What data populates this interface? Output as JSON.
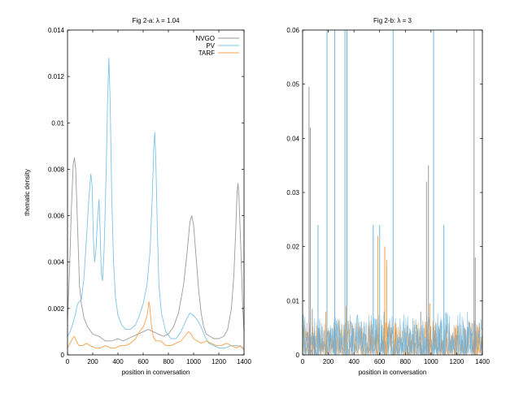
{
  "chart_data": [
    {
      "type": "line",
      "title": "Fig 2-a: λ = 1.04",
      "xlabel": "position in conversation",
      "ylabel": "thematic density",
      "xlim": [
        0,
        1400
      ],
      "ylim": [
        0,
        0.014
      ],
      "x_ticks": [
        0,
        200,
        400,
        600,
        800,
        1000,
        1200,
        1400
      ],
      "y_ticks": [
        0,
        0.002,
        0.004,
        0.006,
        0.008,
        0.01,
        0.012,
        0.014
      ],
      "y_tick_labels": [
        "0",
        "0.002",
        "0.004",
        "0.006",
        "0.008",
        "0.01",
        "0.012",
        "0.014"
      ],
      "grid": false,
      "legend_position": "top-right",
      "series": [
        {
          "name": "NVGO",
          "color": "#9a9a9a",
          "points": [
            [
              0,
              0.0015
            ],
            [
              15,
              0.0035
            ],
            [
              30,
              0.0062
            ],
            [
              45,
              0.0082
            ],
            [
              55,
              0.0085
            ],
            [
              65,
              0.008
            ],
            [
              80,
              0.0055
            ],
            [
              95,
              0.003
            ],
            [
              110,
              0.0022
            ],
            [
              130,
              0.0016
            ],
            [
              160,
              0.0012
            ],
            [
              200,
              0.0009
            ],
            [
              250,
              0.0008
            ],
            [
              300,
              0.0006
            ],
            [
              350,
              0.0006
            ],
            [
              400,
              0.0007
            ],
            [
              440,
              0.0006
            ],
            [
              480,
              0.0007
            ],
            [
              520,
              0.0008
            ],
            [
              560,
              0.0009
            ],
            [
              600,
              0.001
            ],
            [
              640,
              0.0011
            ],
            [
              680,
              0.001
            ],
            [
              720,
              0.0009
            ],
            [
              760,
              0.0008
            ],
            [
              800,
              0.0009
            ],
            [
              840,
              0.0012
            ],
            [
              880,
              0.0018
            ],
            [
              920,
              0.003
            ],
            [
              950,
              0.0045
            ],
            [
              970,
              0.0057
            ],
            [
              985,
              0.006
            ],
            [
              1000,
              0.0056
            ],
            [
              1020,
              0.0042
            ],
            [
              1040,
              0.0028
            ],
            [
              1060,
              0.0018
            ],
            [
              1080,
              0.0012
            ],
            [
              1100,
              0.0009
            ],
            [
              1130,
              0.0008
            ],
            [
              1160,
              0.0007
            ],
            [
              1200,
              0.0007
            ],
            [
              1240,
              0.0008
            ],
            [
              1270,
              0.0011
            ],
            [
              1300,
              0.002
            ],
            [
              1320,
              0.0035
            ],
            [
              1335,
              0.0055
            ],
            [
              1345,
              0.007
            ],
            [
              1352,
              0.0074
            ],
            [
              1360,
              0.0068
            ],
            [
              1375,
              0.0045
            ],
            [
              1390,
              0.002
            ],
            [
              1400,
              0.001
            ]
          ]
        },
        {
          "name": "PV",
          "color": "#7ec4e6",
          "points": [
            [
              0,
              0.0008
            ],
            [
              20,
              0.001
            ],
            [
              40,
              0.0013
            ],
            [
              60,
              0.0017
            ],
            [
              80,
              0.0022
            ],
            [
              95,
              0.0023
            ],
            [
              110,
              0.0024
            ],
            [
              130,
              0.0033
            ],
            [
              150,
              0.005
            ],
            [
              170,
              0.0068
            ],
            [
              185,
              0.0078
            ],
            [
              195,
              0.0073
            ],
            [
              205,
              0.005
            ],
            [
              215,
              0.004
            ],
            [
              225,
              0.0045
            ],
            [
              240,
              0.006
            ],
            [
              250,
              0.0067
            ],
            [
              258,
              0.0055
            ],
            [
              268,
              0.0035
            ],
            [
              278,
              0.0032
            ],
            [
              290,
              0.0045
            ],
            [
              305,
              0.0075
            ],
            [
              318,
              0.011
            ],
            [
              328,
              0.0128
            ],
            [
              338,
              0.011
            ],
            [
              350,
              0.007
            ],
            [
              365,
              0.004
            ],
            [
              380,
              0.0025
            ],
            [
              400,
              0.0017
            ],
            [
              430,
              0.0013
            ],
            [
              460,
              0.0011
            ],
            [
              500,
              0.0011
            ],
            [
              540,
              0.0013
            ],
            [
              570,
              0.0017
            ],
            [
              600,
              0.0022
            ],
            [
              630,
              0.003
            ],
            [
              655,
              0.0045
            ],
            [
              672,
              0.0068
            ],
            [
              685,
              0.009
            ],
            [
              692,
              0.0096
            ],
            [
              700,
              0.0085
            ],
            [
              712,
              0.0055
            ],
            [
              725,
              0.003
            ],
            [
              745,
              0.0018
            ],
            [
              780,
              0.001
            ],
            [
              820,
              0.0007
            ],
            [
              860,
              0.0007
            ],
            [
              900,
              0.001
            ],
            [
              940,
              0.0015
            ],
            [
              970,
              0.0018
            ],
            [
              1000,
              0.0017
            ],
            [
              1030,
              0.0015
            ],
            [
              1060,
              0.0012
            ],
            [
              1090,
              0.0008
            ],
            [
              1120,
              0.0005
            ],
            [
              1160,
              0.0004
            ],
            [
              1200,
              0.0003
            ],
            [
              1250,
              0.0003
            ],
            [
              1300,
              0.0004
            ],
            [
              1350,
              0.0004
            ],
            [
              1400,
              0.0003
            ]
          ]
        },
        {
          "name": "TARF",
          "color": "#f5a24a",
          "points": [
            [
              0,
              0.0003
            ],
            [
              20,
              0.0005
            ],
            [
              40,
              0.0007
            ],
            [
              55,
              0.0008
            ],
            [
              70,
              0.0006
            ],
            [
              90,
              0.0004
            ],
            [
              120,
              0.0004
            ],
            [
              150,
              0.0005
            ],
            [
              180,
              0.0004
            ],
            [
              220,
              0.0003
            ],
            [
              260,
              0.0003
            ],
            [
              300,
              0.0004
            ],
            [
              340,
              0.0003
            ],
            [
              380,
              0.0003
            ],
            [
              420,
              0.0004
            ],
            [
              460,
              0.0004
            ],
            [
              500,
              0.0005
            ],
            [
              540,
              0.0007
            ],
            [
              570,
              0.001
            ],
            [
              600,
              0.0012
            ],
            [
              620,
              0.0015
            ],
            [
              635,
              0.0018
            ],
            [
              645,
              0.0023
            ],
            [
              652,
              0.0021
            ],
            [
              665,
              0.0013
            ],
            [
              680,
              0.0008
            ],
            [
              700,
              0.0006
            ],
            [
              740,
              0.0006
            ],
            [
              780,
              0.0004
            ],
            [
              820,
              0.0004
            ],
            [
              860,
              0.0005
            ],
            [
              900,
              0.0006
            ],
            [
              930,
              0.0008
            ],
            [
              960,
              0.001
            ],
            [
              980,
              0.0009
            ],
            [
              1000,
              0.0007
            ],
            [
              1030,
              0.0006
            ],
            [
              1060,
              0.0005
            ],
            [
              1100,
              0.0006
            ],
            [
              1140,
              0.0005
            ],
            [
              1180,
              0.0004
            ],
            [
              1220,
              0.0004
            ],
            [
              1260,
              0.0005
            ],
            [
              1300,
              0.0004
            ],
            [
              1340,
              0.0003
            ],
            [
              1370,
              0.0004
            ],
            [
              1400,
              0.0002
            ]
          ]
        }
      ]
    },
    {
      "type": "line",
      "title": "Fig 2-b: λ = 3",
      "xlabel": "position in conversation",
      "ylabel": "",
      "xlim": [
        0,
        1400
      ],
      "ylim": [
        0,
        0.06
      ],
      "x_ticks": [
        0,
        200,
        400,
        600,
        800,
        1000,
        1200,
        1400
      ],
      "y_ticks": [
        0,
        0.01,
        0.02,
        0.03,
        0.04,
        0.05,
        0.06
      ],
      "y_tick_labels": [
        "0",
        "0.01",
        "0.02",
        "0.03",
        "0.04",
        "0.05",
        "0.06"
      ],
      "grid": false,
      "legend_position": "none",
      "noise_levels": {
        "gray": 0.004,
        "blue": 0.005,
        "orange": 0.004
      },
      "spikes": [
        {
          "series": "gray",
          "x": 50,
          "y": 0.0495
        },
        {
          "series": "gray",
          "x": 60,
          "y": 0.042
        },
        {
          "series": "gray",
          "x": 75,
          "y": 0.0085
        },
        {
          "series": "gray",
          "x": 90,
          "y": 0.0035
        },
        {
          "series": "blue",
          "x": 120,
          "y": 0.024
        },
        {
          "series": "blue",
          "x": 190,
          "y": 0.06
        },
        {
          "series": "blue",
          "x": 250,
          "y": 0.06
        },
        {
          "series": "blue",
          "x": 330,
          "y": 0.06
        },
        {
          "series": "blue",
          "x": 345,
          "y": 0.06
        },
        {
          "series": "orange",
          "x": 180,
          "y": 0.008
        },
        {
          "series": "orange",
          "x": 340,
          "y": 0.009
        },
        {
          "series": "blue",
          "x": 550,
          "y": 0.024
        },
        {
          "series": "orange",
          "x": 585,
          "y": 0.022
        },
        {
          "series": "blue",
          "x": 600,
          "y": 0.024
        },
        {
          "series": "blue",
          "x": 635,
          "y": 0.008
        },
        {
          "series": "orange",
          "x": 640,
          "y": 0.02
        },
        {
          "series": "orange",
          "x": 655,
          "y": 0.0175
        },
        {
          "series": "blue",
          "x": 705,
          "y": 0.06
        },
        {
          "series": "orange",
          "x": 720,
          "y": 0.006
        },
        {
          "series": "gray",
          "x": 920,
          "y": 0.008
        },
        {
          "series": "gray",
          "x": 965,
          "y": 0.032
        },
        {
          "series": "gray",
          "x": 980,
          "y": 0.035
        },
        {
          "series": "orange",
          "x": 990,
          "y": 0.0095
        },
        {
          "series": "blue",
          "x": 1020,
          "y": 0.06
        },
        {
          "series": "blue",
          "x": 1100,
          "y": 0.024
        },
        {
          "series": "orange",
          "x": 1190,
          "y": 0.005
        },
        {
          "series": "gray",
          "x": 1335,
          "y": 0.06
        },
        {
          "series": "gray",
          "x": 1345,
          "y": 0.018
        },
        {
          "series": "orange",
          "x": 1360,
          "y": 0.005
        }
      ]
    }
  ]
}
